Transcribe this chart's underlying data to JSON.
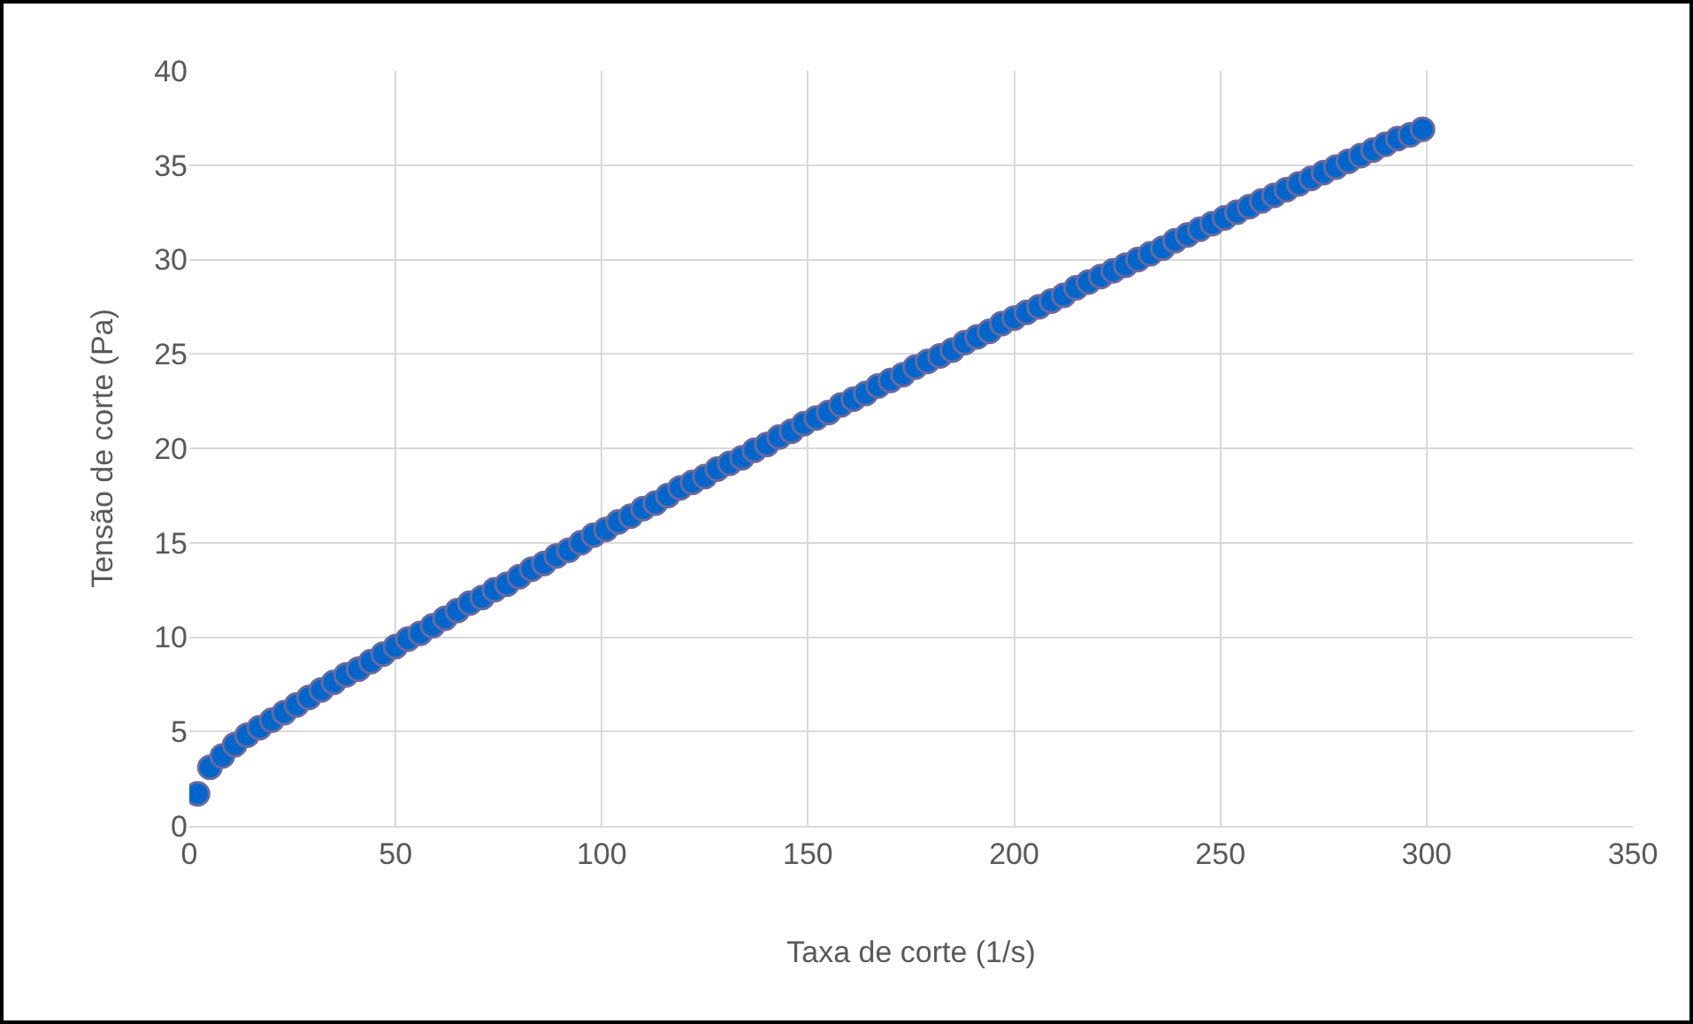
{
  "chart_data": {
    "type": "scatter",
    "xlabel": "Taxa de corte (1/s)",
    "ylabel": "Tensão de corte (Pa)",
    "x": [
      2,
      5,
      8,
      11,
      14,
      17,
      20,
      23,
      26,
      29,
      32,
      35,
      38,
      41,
      44,
      47,
      50,
      53,
      56,
      59,
      62,
      65,
      68,
      71,
      74,
      77,
      80,
      83,
      86,
      89,
      92,
      95,
      98,
      101,
      104,
      107,
      110,
      113,
      116,
      119,
      122,
      125,
      128,
      131,
      134,
      137,
      140,
      143,
      146,
      149,
      152,
      155,
      158,
      161,
      164,
      167,
      170,
      173,
      176,
      179,
      182,
      185,
      188,
      191,
      194,
      197,
      200,
      203,
      206,
      209,
      212,
      215,
      218,
      221,
      224,
      227,
      230,
      233,
      236,
      239,
      242,
      245,
      248,
      251,
      254,
      257,
      260,
      263,
      266,
      269,
      272,
      275,
      278,
      281,
      284,
      287,
      290,
      293,
      296,
      299
    ],
    "series": [
      {
        "color": "#0066cc",
        "values": [
          1.7,
          3.1,
          3.7,
          4.3,
          4.8,
          5.2,
          5.6,
          6.0,
          6.4,
          6.8,
          7.2,
          7.6,
          8.0,
          8.3,
          8.7,
          9.1,
          9.5,
          9.9,
          10.2,
          10.6,
          11.0,
          11.4,
          11.8,
          12.1,
          12.5,
          12.8,
          13.2,
          13.6,
          13.9,
          14.3,
          14.6,
          15.0,
          15.4,
          15.7,
          16.1,
          16.4,
          16.8,
          17.1,
          17.5,
          17.9,
          18.2,
          18.5,
          18.9,
          19.2,
          19.5,
          19.9,
          20.2,
          20.6,
          20.9,
          21.3,
          21.6,
          21.9,
          22.3,
          22.6,
          22.9,
          23.3,
          23.6,
          23.9,
          24.3,
          24.6,
          24.9,
          25.2,
          25.6,
          25.9,
          26.2,
          26.6,
          26.9,
          27.2,
          27.5,
          27.8,
          28.1,
          28.5,
          28.8,
          29.1,
          29.4,
          29.7,
          30.0,
          30.3,
          30.6,
          31.0,
          31.3,
          31.6,
          31.9,
          32.2,
          32.5,
          32.8,
          33.1,
          33.4,
          33.7,
          34.0,
          34.3,
          34.6,
          34.9,
          35.2,
          35.5,
          35.8,
          36.1,
          36.4,
          36.6,
          36.9
        ]
      }
    ],
    "xlim": [
      0,
      350
    ],
    "xticks": [
      0,
      50,
      100,
      150,
      200,
      250,
      300,
      350
    ],
    "ylim": [
      0,
      40
    ],
    "yticks": [
      0,
      5,
      10,
      15,
      20,
      25,
      30,
      35,
      40
    ],
    "grid": true,
    "marker": "circle"
  }
}
